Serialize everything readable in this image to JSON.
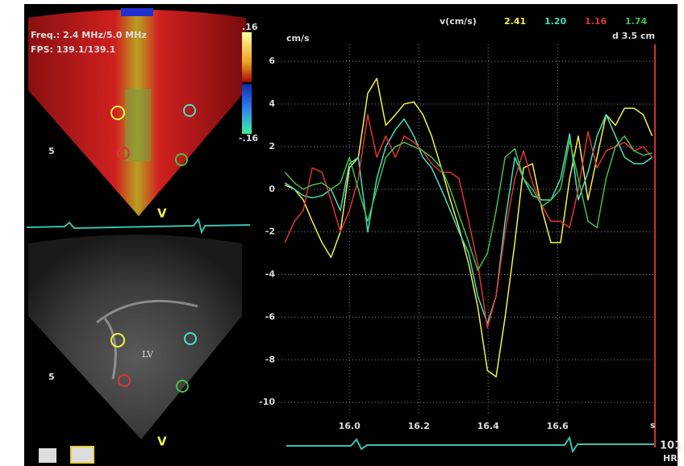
{
  "panel": {
    "frequency": "Freq.: 2.4 MHz/5.0 MHz",
    "fps": "FPS: 139.1/139.1",
    "scale_max": ".16",
    "scale_min": "-.16",
    "depth_top": "5",
    "depth_bottom": "5",
    "view_top": "V",
    "view_bottom": "V",
    "region": "LV"
  },
  "heart_rate": {
    "value": 101,
    "label": "HR"
  },
  "chart_data": {
    "type": "line",
    "y_label": "cm/s",
    "x_label": "s",
    "legend_title": "v(cm/s)",
    "distance": "d 3.5 cm",
    "x": [
      15.814,
      15.842,
      15.867,
      15.893,
      15.921,
      15.947,
      15.974,
      16.0,
      16.026,
      16.053,
      16.079,
      16.105,
      16.133,
      16.158,
      16.186,
      16.212,
      16.237,
      16.265,
      16.291,
      16.316,
      16.344,
      16.37,
      16.398,
      16.423,
      16.449,
      16.477,
      16.502,
      16.528,
      16.556,
      16.581,
      16.609,
      16.635,
      16.66,
      16.688,
      16.714,
      16.74,
      16.767,
      16.793,
      16.821,
      16.847,
      16.873
    ],
    "series": [
      {
        "name": "2.41",
        "color": "#f2f24a",
        "values": [
          0.2,
          0,
          -0.5,
          -1.5,
          -2.5,
          -3.2,
          -2,
          1.0,
          1.5,
          4.5,
          5.2,
          3.0,
          3.5,
          4.0,
          4.1,
          3.5,
          2.5,
          1.0,
          -0.5,
          -1.8,
          -3.5,
          -5.5,
          -8.5,
          -8.8,
          -6,
          -2.5,
          1.0,
          1.2,
          -1.0,
          -2.5,
          -2.5,
          0.5,
          2.5,
          -0.5,
          1.5,
          3.5,
          3.0,
          3.8,
          3.8,
          3.5,
          2.5
        ]
      },
      {
        "name": "1.20",
        "color": "#45e0c4",
        "values": [
          0.3,
          0,
          -0.3,
          -0.4,
          -0.3,
          0,
          -1,
          1.2,
          1.5,
          -2.0,
          0.5,
          2.0,
          2.8,
          3.3,
          2.5,
          1.5,
          1.0,
          0,
          -1,
          -2,
          -3,
          -5,
          -6.3,
          -5,
          -1.5,
          1.5,
          0.5,
          -0.3,
          -0.5,
          -0.5,
          0.5,
          2.6,
          -0.5,
          0.8,
          2.5,
          3.5,
          2.5,
          1.5,
          1.2,
          1.2,
          1.5
        ]
      },
      {
        "name": "1.16",
        "color": "#e03434",
        "values": [
          -2.5,
          -1.5,
          -1,
          1,
          0.8,
          -0.5,
          -2,
          -1,
          0.5,
          3.5,
          1.5,
          2.5,
          1.5,
          2.5,
          2.2,
          1.8,
          1.2,
          0.8,
          0.8,
          0.5,
          -1.5,
          -3.5,
          -6.5,
          -5,
          -2,
          0.5,
          1.8,
          0.3,
          -0.8,
          -1.5,
          -1.5,
          -1.8,
          0,
          2.7,
          1.0,
          1.8,
          2.0,
          2.2,
          1.8,
          2.0,
          1.5
        ]
      },
      {
        "name": "1.74",
        "color": "#46c046",
        "values": [
          0.8,
          0.3,
          0,
          0.2,
          0.3,
          0,
          0.3,
          1.5,
          0,
          -1.5,
          0,
          1.5,
          2.0,
          2.2,
          2.0,
          1.8,
          1.5,
          1.0,
          0,
          -1.2,
          -2.5,
          -3.8,
          -3.0,
          -1,
          1.5,
          1.9,
          0.5,
          0,
          -0.8,
          -0.5,
          0,
          2.3,
          0.5,
          -1.5,
          -1.8,
          0.5,
          2.0,
          2.5,
          1.8,
          1.6,
          1.7
        ]
      }
    ],
    "xlim": [
      15.795,
      16.881
    ],
    "ylim": [
      -10.6,
      6.8
    ],
    "xticks": [
      {
        "value": 16.0,
        "label": "16.0"
      },
      {
        "value": 16.2,
        "label": "16.2"
      },
      {
        "value": 16.4,
        "label": "16.4"
      },
      {
        "value": 16.6,
        "label": "16.6"
      }
    ],
    "yticks": [
      -10,
      -8,
      -6,
      -4,
      -2,
      0,
      2,
      4,
      6
    ],
    "grid": true
  }
}
